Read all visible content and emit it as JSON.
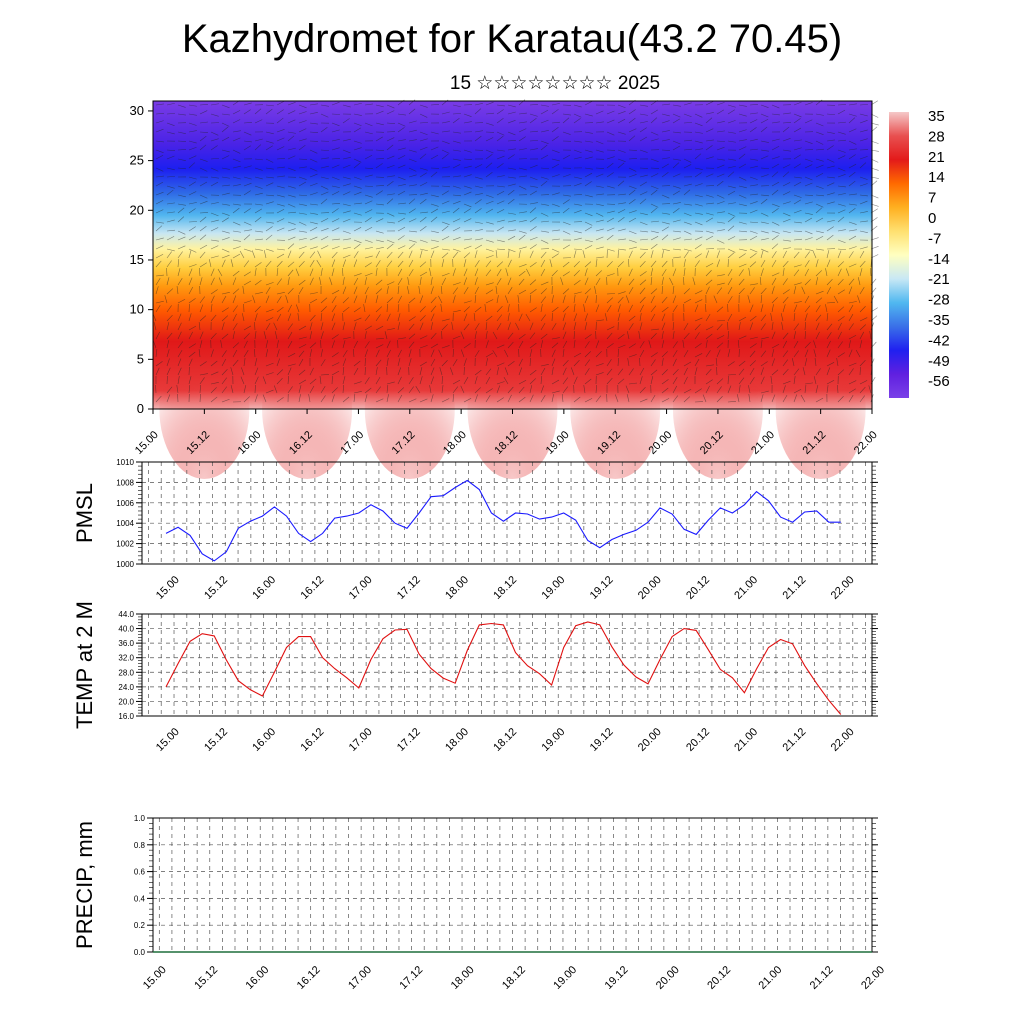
{
  "title": "Kazhydromet for Karatau(43.2 70.45)",
  "subtitle": "15 ☆☆☆☆☆☆☆☆ 2025",
  "colors": {
    "pmsl_line": "#1a1aff",
    "temp_line": "#e01010",
    "grid": "#555555",
    "colorbar": [
      "#f5c9c9",
      "#e85050",
      "#e31a1a",
      "#ff6a00",
      "#ffb020",
      "#ffe070",
      "#ffffc0",
      "#c8e8f5",
      "#50b8f0",
      "#3a70e8",
      "#2020f0",
      "#6020e0",
      "#7a40e8"
    ]
  },
  "chart_data": [
    {
      "type": "heatmap",
      "name": "wind-temperature-profile",
      "x_labels": [
        "15.00",
        "15.12",
        "16.00",
        "16.12",
        "17.00",
        "17.12",
        "18.00",
        "18.12",
        "19.00",
        "19.12",
        "20.00",
        "20.12",
        "21.00",
        "21.12",
        "22.00"
      ],
      "y_ticks": [
        0,
        5,
        10,
        15,
        20,
        25,
        30
      ],
      "ylim": [
        0,
        31
      ],
      "colorbar_labels": [
        "35",
        "28",
        "21",
        "14",
        "7",
        "0",
        "-7",
        "-14",
        "-21",
        "-28",
        "-35",
        "-42",
        "-49",
        "-56"
      ],
      "overlay": "wind barbs"
    },
    {
      "type": "line",
      "ylabel": "PMSL",
      "ylim": [
        1000,
        1010
      ],
      "y_ticks": [
        "1000",
        "1002",
        "1004",
        "1006",
        "1008",
        "1010"
      ],
      "x_labels": [
        "15.00",
        "15.12",
        "16.00",
        "16.12",
        "17.00",
        "17.12",
        "18.00",
        "18.12",
        "19.00",
        "19.12",
        "20.00",
        "20.12",
        "21.00",
        "21.12",
        "22.00"
      ],
      "values": [
        1003,
        1003.6,
        1002.8,
        1001,
        1000.3,
        1001.2,
        1003.5,
        1004.2,
        1004.7,
        1005.6,
        1004.7,
        1003,
        1002.2,
        1003,
        1004.5,
        1004.7,
        1005,
        1005.8,
        1005.2,
        1004,
        1003.5,
        1005,
        1006.6,
        1006.7,
        1007.5,
        1008.2,
        1007.3,
        1005,
        1004.2,
        1005,
        1004.9,
        1004.4,
        1004.6,
        1005,
        1004.3,
        1002.3,
        1001.6,
        1002.4,
        1002.9,
        1003.3,
        1004.1,
        1005.5,
        1004.9,
        1003.4,
        1002.9,
        1004.3,
        1005.5,
        1005,
        1005.8,
        1007.1,
        1006.2,
        1004.6,
        1004.1,
        1005.1,
        1005.2,
        1004.1,
        1004.1
      ]
    },
    {
      "type": "line",
      "ylabel": "TEMP at 2 M",
      "ylim": [
        16,
        44
      ],
      "y_ticks": [
        "16.0",
        "20.0",
        "24.0",
        "28.0",
        "32.0",
        "36.0",
        "40.0",
        "44.0"
      ],
      "x_labels": [
        "15.00",
        "15.12",
        "16.00",
        "16.12",
        "17.00",
        "17.12",
        "18.00",
        "18.12",
        "19.00",
        "19.12",
        "20.00",
        "20.12",
        "21.00",
        "21.12",
        "22.00"
      ],
      "values": [
        24,
        30.4,
        36.5,
        38.6,
        38,
        31.4,
        25.7,
        23.2,
        21.5,
        28,
        34.8,
        37.8,
        37.8,
        32,
        29,
        26.5,
        23.7,
        31.5,
        37.2,
        39.6,
        39.8,
        33,
        29,
        26.4,
        25,
        34,
        41,
        41.4,
        41,
        33.4,
        29.8,
        27.6,
        24.5,
        34.8,
        40.8,
        41.8,
        41,
        35,
        30,
        26.7,
        24.8,
        31.5,
        37.8,
        40,
        39.5,
        34.2,
        28.8,
        26.5,
        22.4,
        28.9,
        34.8,
        37,
        35.8,
        29.8,
        24.9,
        20.3,
        16.4
      ]
    },
    {
      "type": "bar",
      "ylabel": "PRECIP, mm",
      "ylim": [
        0,
        1
      ],
      "y_ticks": [
        "0.0",
        "0.2",
        "0.4",
        "0.6",
        "0.8",
        "1.0"
      ],
      "x_labels": [
        "15.00",
        "15.12",
        "16.00",
        "16.12",
        "17.00",
        "17.12",
        "18.00",
        "18.12",
        "19.00",
        "19.12",
        "20.00",
        "20.12",
        "21.00",
        "21.12",
        "22.00"
      ],
      "values": []
    }
  ]
}
